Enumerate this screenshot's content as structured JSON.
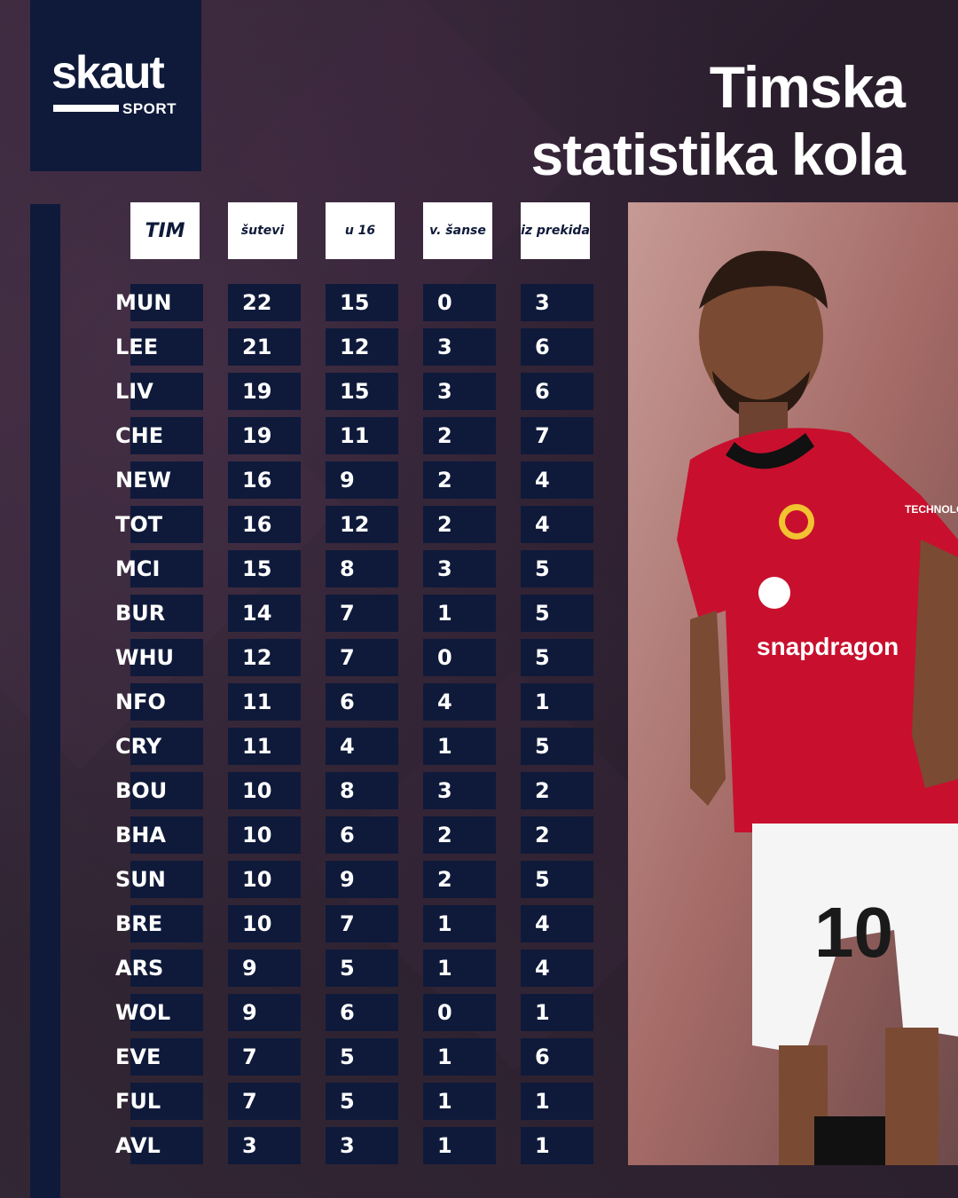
{
  "brand": {
    "name": "skaut",
    "sub": "SPORT"
  },
  "title": {
    "line1": "Timska",
    "line2": "statistika kola"
  },
  "table": {
    "headers": [
      "TIM",
      "šutevi",
      "u 16",
      "v. šanse",
      "iz prekida"
    ],
    "rows": [
      {
        "team": "MUN",
        "shots": "22",
        "in16": "15",
        "bigChances": "0",
        "setPieces": "3"
      },
      {
        "team": "LEE",
        "shots": "21",
        "in16": "12",
        "bigChances": "3",
        "setPieces": "6"
      },
      {
        "team": "LIV",
        "shots": "19",
        "in16": "15",
        "bigChances": "3",
        "setPieces": "6"
      },
      {
        "team": "CHE",
        "shots": "19",
        "in16": "11",
        "bigChances": "2",
        "setPieces": "7"
      },
      {
        "team": "NEW",
        "shots": "16",
        "in16": "9",
        "bigChances": "2",
        "setPieces": "4"
      },
      {
        "team": "TOT",
        "shots": "16",
        "in16": "12",
        "bigChances": "2",
        "setPieces": "4"
      },
      {
        "team": "MCI",
        "shots": "15",
        "in16": "8",
        "bigChances": "3",
        "setPieces": "5"
      },
      {
        "team": "BUR",
        "shots": "14",
        "in16": "7",
        "bigChances": "1",
        "setPieces": "5"
      },
      {
        "team": "WHU",
        "shots": "12",
        "in16": "7",
        "bigChances": "0",
        "setPieces": "5"
      },
      {
        "team": "NFO",
        "shots": "11",
        "in16": "6",
        "bigChances": "4",
        "setPieces": "1"
      },
      {
        "team": "CRY",
        "shots": "11",
        "in16": "4",
        "bigChances": "1",
        "setPieces": "5"
      },
      {
        "team": "BOU",
        "shots": "10",
        "in16": "8",
        "bigChances": "3",
        "setPieces": "2"
      },
      {
        "team": "BHA",
        "shots": "10",
        "in16": "6",
        "bigChances": "2",
        "setPieces": "2"
      },
      {
        "team": "SUN",
        "shots": "10",
        "in16": "9",
        "bigChances": "2",
        "setPieces": "5"
      },
      {
        "team": "BRE",
        "shots": "10",
        "in16": "7",
        "bigChances": "1",
        "setPieces": "4"
      },
      {
        "team": "ARS",
        "shots": "9",
        "in16": "5",
        "bigChances": "1",
        "setPieces": "4"
      },
      {
        "team": "WOL",
        "shots": "9",
        "in16": "6",
        "bigChances": "0",
        "setPieces": "1"
      },
      {
        "team": "EVE",
        "shots": "7",
        "in16": "5",
        "bigChances": "1",
        "setPieces": "6"
      },
      {
        "team": "FUL",
        "shots": "7",
        "in16": "5",
        "bigChances": "1",
        "setPieces": "1"
      },
      {
        "team": "AVL",
        "shots": "3",
        "in16": "3",
        "bigChances": "1",
        "setPieces": "1"
      }
    ]
  },
  "photo": {
    "jersey_sponsor": "snapdragon",
    "sleeve_text": "TECHNOLO",
    "shorts_number": "10"
  },
  "colors": {
    "navy": "#0f1a3a",
    "background": "#2b1f2e",
    "jersey_red": "#c8102e"
  }
}
